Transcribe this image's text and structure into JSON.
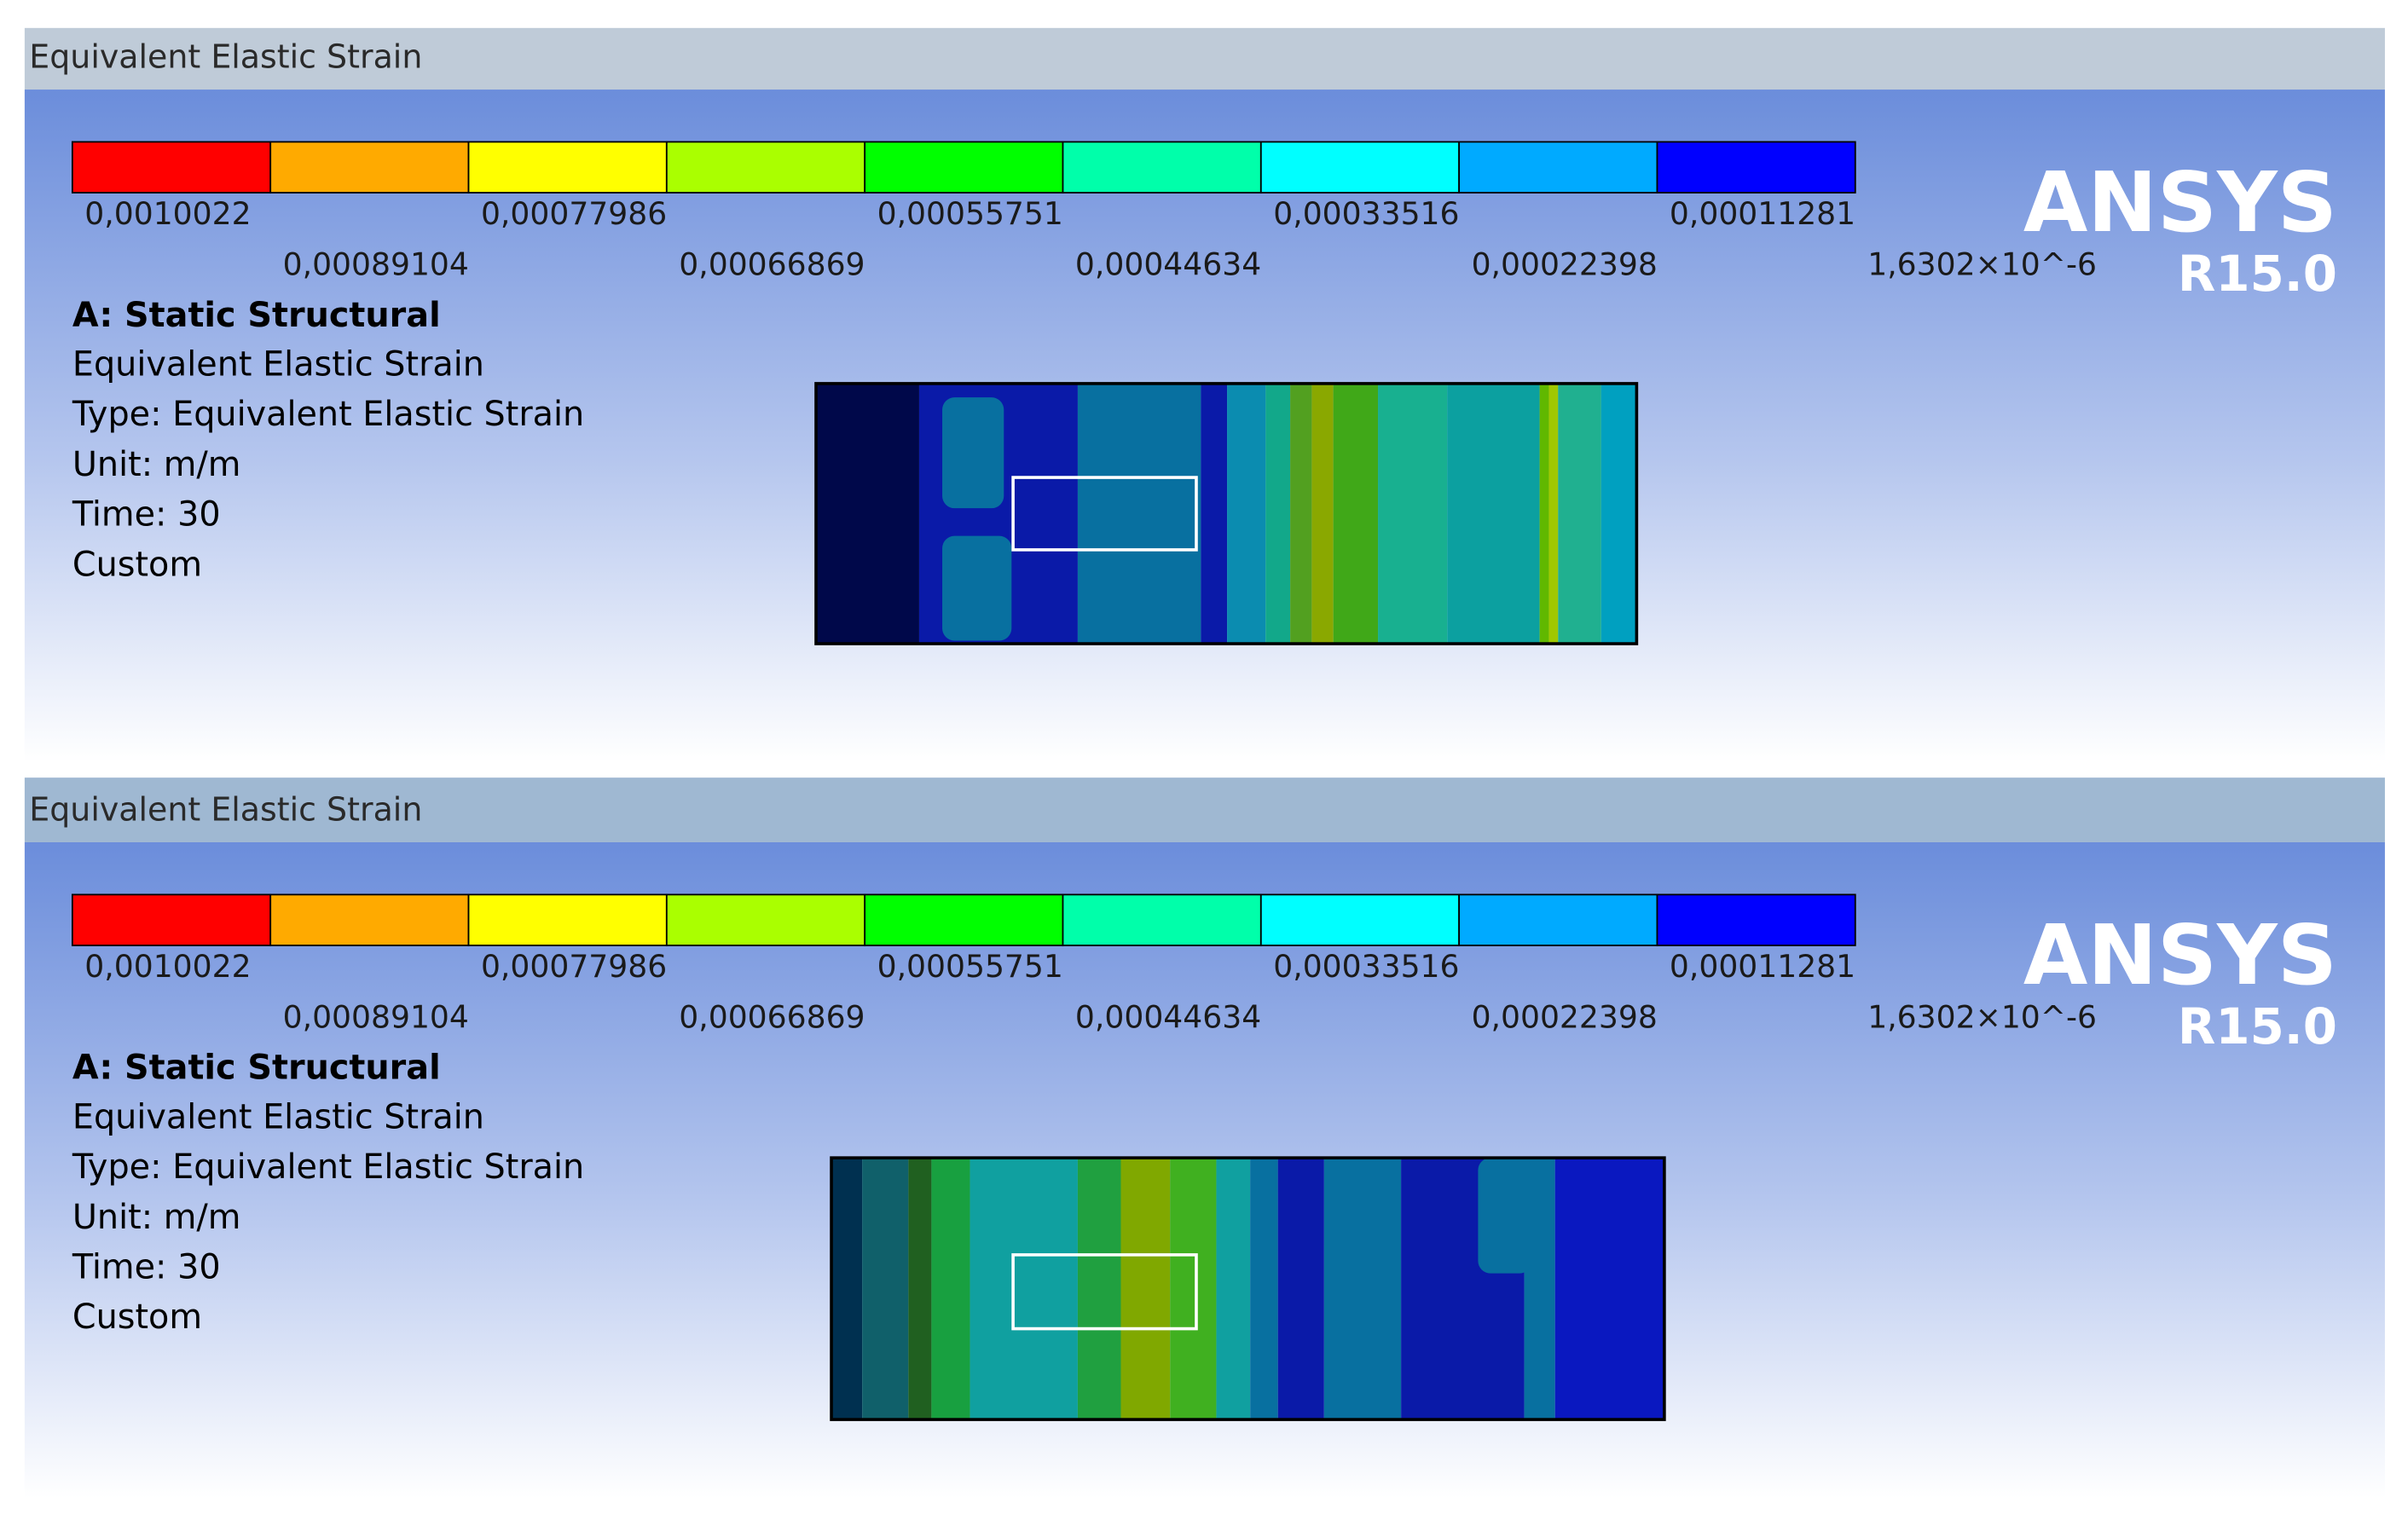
{
  "panels": [
    {
      "title": "Equivalent Elastic Strain",
      "legend": {
        "labels": [
          "0,0010022",
          "0,00089104",
          "0,00077986",
          "0,00066869",
          "0,00055751",
          "0,00044634",
          "0,00033516",
          "0,00022398",
          "0,00011281",
          "1,6302×10^-6"
        ]
      },
      "info": {
        "heading": "A: Static Structural",
        "lines": [
          "Equivalent Elastic Strain",
          "Type: Equivalent Elastic Strain",
          "Unit: m/m",
          "Time: 30",
          "Custom"
        ]
      },
      "logo": {
        "name": "ANSYS",
        "version": "R15.0"
      }
    },
    {
      "title": "Equivalent Elastic Strain",
      "legend": {
        "labels": [
          "0,0010022",
          "0,00089104",
          "0,00077986",
          "0,00066869",
          "0,00055751",
          "0,00044634",
          "0,00033516",
          "0,00022398",
          "0,00011281",
          "1,6302×10^-6"
        ]
      },
      "info": {
        "heading": "A: Static Structural",
        "lines": [
          "Equivalent Elastic Strain",
          "Type: Equivalent Elastic Strain",
          "Unit: m/m",
          "Time: 30",
          "Custom"
        ]
      },
      "logo": {
        "name": "ANSYS",
        "version": "R15.0"
      }
    }
  ]
}
